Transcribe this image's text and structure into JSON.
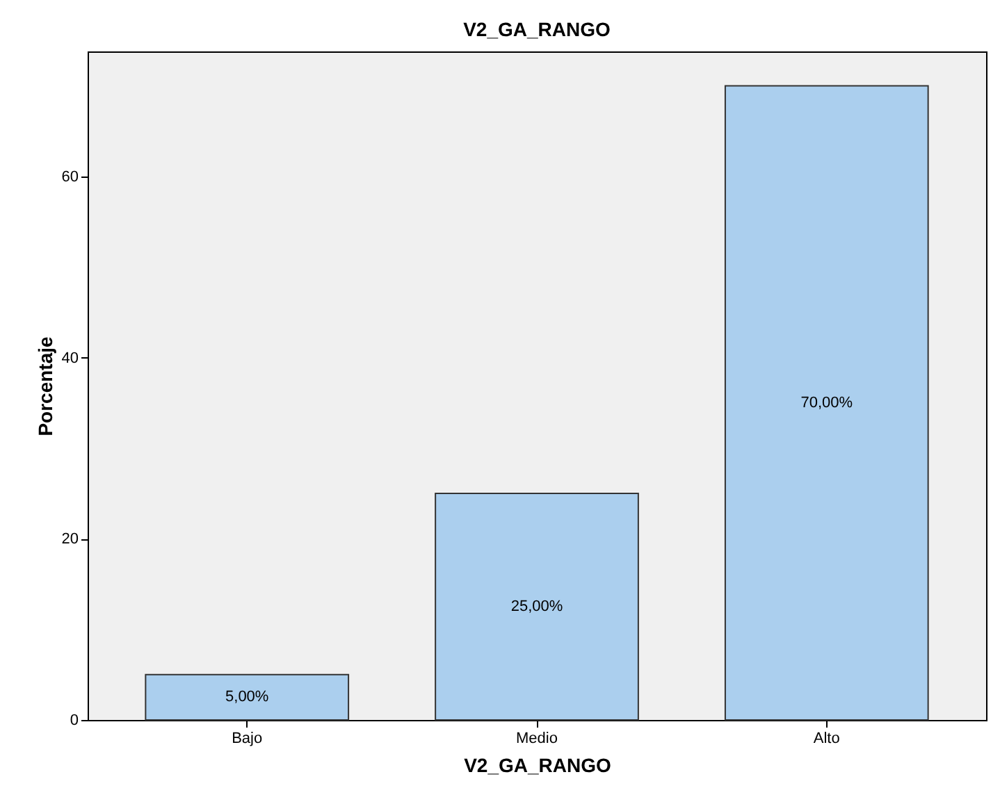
{
  "chart_data": {
    "type": "bar",
    "title": "V2_GA_RANGO",
    "xlabel": "V2_GA_RANGO",
    "ylabel": "Porcentaje",
    "categories": [
      "Bajo",
      "Medio",
      "Alto"
    ],
    "values": [
      5,
      25,
      70
    ],
    "value_labels": [
      "5,00%",
      "25,00%",
      "70,00%"
    ],
    "color": "#abcfee",
    "ylim": [
      0,
      73.8
    ],
    "yticks": [
      0,
      20,
      40,
      60
    ]
  }
}
